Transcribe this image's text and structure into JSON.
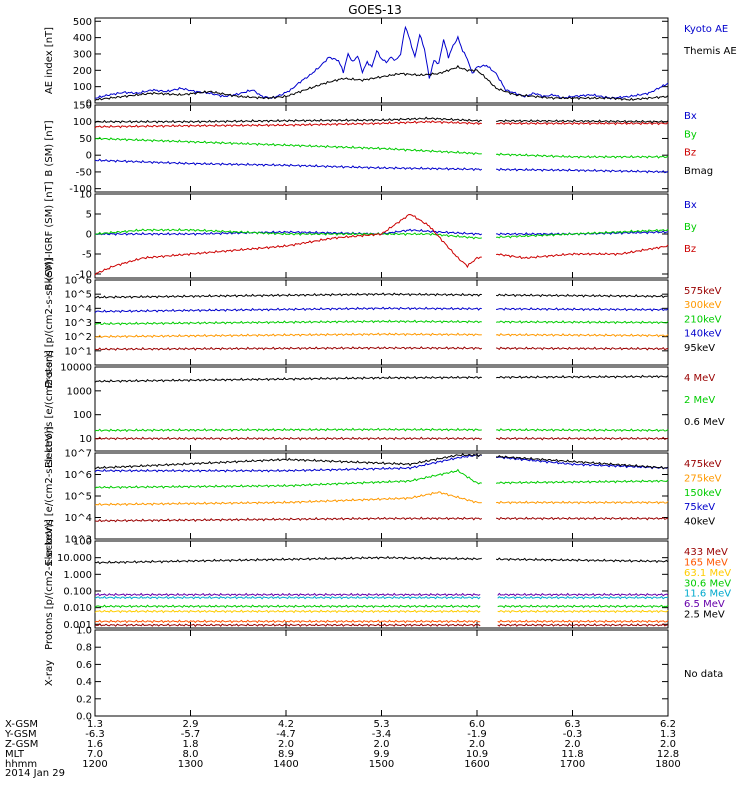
{
  "title": "GOES-13",
  "footer": {
    "row_labels": [
      "X-GSM",
      "Y-GSM",
      "Z-GSM",
      "MLT",
      "hhmm"
    ],
    "date": "2014 Jan 29",
    "columns": [
      [
        "1.3",
        "-6.3",
        "1.6",
        "7.0",
        "1200"
      ],
      [
        "2.9",
        "-5.7",
        "1.8",
        "8.0",
        "1300"
      ],
      [
        "4.2",
        "-4.7",
        "2.0",
        "8.9",
        "1400"
      ],
      [
        "5.3",
        "-3.4",
        "2.0",
        "9.9",
        "1500"
      ],
      [
        "6.0",
        "-1.9",
        "2.0",
        "10.9",
        "1600"
      ],
      [
        "6.3",
        "-0.3",
        "2.0",
        "11.8",
        "1700"
      ],
      [
        "6.2",
        "1.3",
        "2.0",
        "12.8",
        "1800"
      ]
    ]
  },
  "chart_data": [
    {
      "type": "line",
      "ylabel": "AE index [nT]",
      "ylim": [
        0,
        520
      ],
      "ticks": [
        "0",
        "100",
        "200",
        "300",
        "400",
        "500"
      ],
      "tickvals": [
        0,
        100,
        200,
        300,
        400,
        500
      ],
      "series": [
        {
          "name": "Kyoto AE",
          "color": "#0000cc",
          "x": [
            0,
            0.15,
            0.3,
            0.45,
            0.6,
            0.75,
            0.9,
            1.05,
            1.2,
            1.35,
            1.5,
            1.65,
            1.75,
            1.85,
            1.95,
            2.05,
            2.15,
            2.25,
            2.35,
            2.45,
            2.55,
            2.6,
            2.65,
            2.7,
            2.75,
            2.8,
            2.85,
            2.9,
            2.95,
            3.0,
            3.05,
            3.1,
            3.15,
            3.2,
            3.25,
            3.3,
            3.35,
            3.4,
            3.45,
            3.5,
            3.55,
            3.6,
            3.65,
            3.7,
            3.75,
            3.8,
            3.85,
            3.9,
            3.95,
            4.0,
            4.1,
            4.2,
            4.3,
            4.4,
            4.5,
            4.6,
            4.7,
            4.8,
            4.9,
            5.0,
            5.2,
            5.4,
            5.6,
            5.8,
            6.0
          ],
          "values": [
            30,
            50,
            65,
            60,
            80,
            70,
            90,
            70,
            60,
            40,
            55,
            80,
            40,
            30,
            50,
            80,
            130,
            170,
            220,
            280,
            260,
            190,
            300,
            250,
            290,
            190,
            250,
            220,
            320,
            270,
            250,
            280,
            260,
            300,
            470,
            380,
            280,
            420,
            330,
            150,
            260,
            240,
            390,
            280,
            350,
            400,
            320,
            270,
            180,
            220,
            230,
            180,
            80,
            60,
            40,
            60,
            40,
            50,
            30,
            40,
            50,
            30,
            40,
            60,
            120
          ]
        },
        {
          "name": "Themis AE",
          "color": "#000000",
          "x": [
            0,
            0.3,
            0.6,
            0.9,
            1.2,
            1.5,
            1.8,
            2.0,
            2.2,
            2.4,
            2.6,
            2.8,
            3.0,
            3.2,
            3.4,
            3.6,
            3.8,
            3.9,
            4.0,
            4.1,
            4.2,
            4.4,
            4.6,
            4.8,
            5.0,
            5.2,
            5.4,
            5.6,
            5.8,
            6.0
          ],
          "values": [
            20,
            40,
            60,
            50,
            70,
            40,
            30,
            40,
            80,
            120,
            150,
            140,
            160,
            180,
            170,
            180,
            220,
            200,
            200,
            150,
            90,
            50,
            40,
            30,
            30,
            30,
            30,
            20,
            30,
            40
          ]
        }
      ]
    },
    {
      "type": "line",
      "ylabel": "B (SM) [nT]",
      "ylim": [
        -110,
        150
      ],
      "ticks": [
        "-100",
        "-50",
        "0",
        "50",
        "100",
        "150"
      ],
      "tickvals": [
        -100,
        -50,
        0,
        50,
        100,
        150
      ],
      "gaps": [
        [
          4.05,
          4.2
        ]
      ],
      "series": [
        {
          "name": "Bx",
          "color": "#0000cc",
          "x": [
            0,
            1,
            2,
            3,
            4,
            5,
            6
          ],
          "values": [
            -15,
            -25,
            -30,
            -38,
            -42,
            -45,
            -50
          ]
        },
        {
          "name": "By",
          "color": "#00cc00",
          "x": [
            0,
            1,
            2,
            3,
            4,
            5,
            6
          ],
          "values": [
            50,
            40,
            30,
            20,
            5,
            -5,
            -5
          ]
        },
        {
          "name": "Bz",
          "color": "#cc0000",
          "x": [
            0,
            1,
            2,
            3,
            3.5,
            4,
            5,
            6
          ],
          "values": [
            85,
            88,
            90,
            95,
            100,
            95,
            95,
            95
          ]
        },
        {
          "name": "Bmag",
          "color": "#000000",
          "x": [
            0,
            1,
            2,
            3,
            3.5,
            4,
            5,
            6
          ],
          "values": [
            100,
            100,
            103,
            105,
            110,
            103,
            102,
            100
          ]
        }
      ]
    },
    {
      "type": "line",
      "ylabel": "B (SM)-IGRF (SM) [nT]",
      "ylim": [
        -11,
        10
      ],
      "ticks": [
        "-10",
        "-5",
        "0",
        "5",
        "10"
      ],
      "tickvals": [
        -10,
        -5,
        0,
        5,
        10
      ],
      "gaps": [
        [
          4.05,
          4.2
        ]
      ],
      "series": [
        {
          "name": "Bx",
          "color": "#0000cc",
          "x": [
            0,
            1,
            2,
            3,
            3.3,
            3.6,
            4,
            5,
            6
          ],
          "values": [
            0,
            0,
            0.5,
            0,
            1,
            0.5,
            0,
            0,
            0.5
          ]
        },
        {
          "name": "By",
          "color": "#00cc00",
          "x": [
            0,
            0.5,
            1,
            2,
            3,
            3.5,
            4,
            5,
            6
          ],
          "values": [
            0,
            1,
            1,
            0,
            0,
            0,
            -1,
            0,
            1
          ]
        },
        {
          "name": "Bz",
          "color": "#cc0000",
          "x": [
            0,
            0.2,
            0.5,
            1,
            1.5,
            2,
            2.5,
            3,
            3.3,
            3.5,
            3.8,
            3.9,
            4.0,
            4.2,
            4.5,
            5,
            5.5,
            6
          ],
          "values": [
            -10,
            -8,
            -6,
            -5,
            -4,
            -3,
            -1,
            0,
            5,
            2,
            -6,
            -8,
            -6,
            -5,
            -6,
            -5,
            -5,
            -3
          ]
        }
      ]
    },
    {
      "type": "line",
      "ylabel": "Protons [p/(cm2-s-sr-keV)]",
      "scale": "log",
      "ylim": [
        1,
        1000000
      ],
      "ticks": [
        "10^1",
        "10^2",
        "10^3",
        "10^4",
        "10^5",
        "10^6"
      ],
      "tickvals": [
        10,
        100,
        1000,
        10000,
        100000,
        1000000
      ],
      "gaps": [
        [
          4.05,
          4.2
        ]
      ],
      "series": [
        {
          "name": "575keV",
          "color": "#990000",
          "x": [
            0,
            3,
            6
          ],
          "values": [
            13,
            16,
            14
          ]
        },
        {
          "name": "300keV",
          "color": "#ff9900",
          "x": [
            0,
            3,
            6
          ],
          "values": [
            100,
            150,
            120
          ]
        },
        {
          "name": "210keV",
          "color": "#00cc00",
          "x": [
            0,
            3,
            6
          ],
          "values": [
            800,
            1200,
            1000
          ]
        },
        {
          "name": "140keV",
          "color": "#0000cc",
          "x": [
            0,
            3,
            6
          ],
          "values": [
            6000,
            10000,
            8000
          ]
        },
        {
          "name": "95keV",
          "color": "#000000",
          "x": [
            0,
            3,
            6
          ],
          "values": [
            60000,
            100000,
            70000
          ]
        }
      ]
    },
    {
      "type": "line",
      "ylabel": "Electrons [e/(cm2-s-sr)]",
      "scale": "log",
      "ylim": [
        3,
        10000
      ],
      "ticks": [
        "10",
        "100",
        "1000",
        "10000"
      ],
      "tickvals": [
        10,
        100,
        1000,
        10000
      ],
      "gaps": [
        [
          4.05,
          4.2
        ]
      ],
      "series": [
        {
          "name": "4 MeV",
          "color": "#990000",
          "x": [
            0,
            3,
            6
          ],
          "values": [
            10,
            10,
            10
          ]
        },
        {
          "name": "2 MeV",
          "color": "#00cc00",
          "x": [
            0,
            3,
            6
          ],
          "values": [
            22,
            24,
            22
          ]
        },
        {
          "name": "0.6 MeV",
          "color": "#000000",
          "x": [
            0,
            3,
            6
          ],
          "values": [
            2500,
            3500,
            4000
          ]
        }
      ]
    },
    {
      "type": "line",
      "ylabel": "Electrons [e/(cm2-s-sr-keV)]",
      "scale": "log",
      "ylim": [
        1000,
        10000000
      ],
      "ticks": [
        "10^3",
        "10^4",
        "10^5",
        "10^6",
        "10^7"
      ],
      "tickvals": [
        1000,
        10000,
        100000,
        1000000,
        10000000
      ],
      "gaps": [
        [
          4.05,
          4.2
        ]
      ],
      "series": [
        {
          "name": "475keV",
          "color": "#990000",
          "x": [
            0,
            3,
            6
          ],
          "values": [
            7000,
            9000,
            9000
          ]
        },
        {
          "name": "275keV",
          "color": "#ff9900",
          "x": [
            0,
            2,
            3.3,
            3.6,
            4,
            6
          ],
          "values": [
            40000,
            50000,
            80000,
            150000,
            50000,
            50000
          ]
        },
        {
          "name": "150keV",
          "color": "#00cc00",
          "x": [
            0,
            2,
            3.3,
            3.8,
            4,
            6
          ],
          "values": [
            250000,
            300000,
            500000,
            1500000,
            400000,
            500000
          ]
        },
        {
          "name": "75keV",
          "color": "#0000cc",
          "x": [
            0,
            2,
            3.3,
            3.8,
            4,
            5,
            6
          ],
          "values": [
            1500000,
            1500000,
            2000000,
            6000000,
            8000000,
            3000000,
            2000000
          ]
        },
        {
          "name": "40keV",
          "color": "#000000",
          "x": [
            0,
            2,
            3.3,
            3.8,
            4,
            5,
            6
          ],
          "values": [
            2000000,
            5000000,
            3000000,
            8000000,
            8000000,
            4000000,
            2000000
          ]
        }
      ]
    },
    {
      "type": "line",
      "ylabel": "Protons [p/(cm2-s-sr-keV)]",
      "scale": "log",
      "ylim": [
        0.0006,
        100
      ],
      "ticks": [
        "0.001",
        "0.010",
        "0.100",
        "1.000",
        "10.000",
        "100"
      ],
      "tickvals": [
        0.001,
        0.01,
        0.1,
        1,
        10,
        100
      ],
      "gaps": [
        [
          4.05,
          4.2
        ]
      ],
      "series": [
        {
          "name": "433 MeV",
          "color": "#990000",
          "x": [
            0,
            6
          ],
          "values": [
            0.0009,
            0.0009
          ]
        },
        {
          "name": "165 MeV",
          "color": "#ff5500",
          "x": [
            0,
            6
          ],
          "values": [
            0.0015,
            0.0015
          ]
        },
        {
          "name": "63.1 MeV",
          "color": "#ffcc00",
          "x": [
            0,
            6
          ],
          "values": [
            0.006,
            0.006
          ]
        },
        {
          "name": "30.6 MeV",
          "color": "#00cc00",
          "x": [
            0,
            6
          ],
          "values": [
            0.012,
            0.012
          ]
        },
        {
          "name": "11.6 MeV",
          "color": "#00aacc",
          "x": [
            0,
            6
          ],
          "values": [
            0.04,
            0.04
          ]
        },
        {
          "name": "6.5 MeV",
          "color": "#6600aa",
          "x": [
            0,
            6
          ],
          "values": [
            0.06,
            0.06
          ]
        },
        {
          "name": "2.5 MeV",
          "color": "#000000",
          "x": [
            0,
            3,
            6
          ],
          "values": [
            5,
            10,
            6
          ]
        }
      ]
    },
    {
      "type": "line",
      "ylabel": "X-ray",
      "ylim": [
        0,
        1
      ],
      "ticks": [
        "0.0",
        "0.2",
        "0.4",
        "0.6",
        "0.8",
        "1.0"
      ],
      "tickvals": [
        0,
        0.2,
        0.4,
        0.6,
        0.8,
        1.0
      ],
      "no_data_text": "No data",
      "series": []
    }
  ]
}
